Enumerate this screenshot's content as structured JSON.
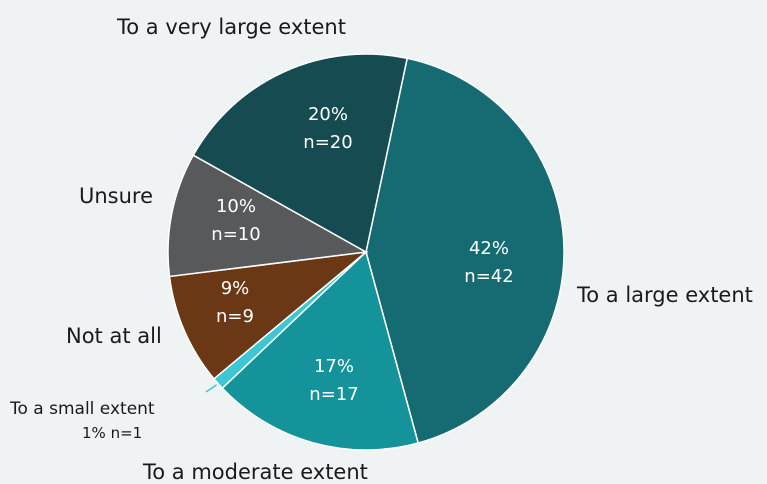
{
  "chart_data": {
    "type": "pie",
    "title": "",
    "slices": [
      {
        "label": "To a large extent",
        "value": 42,
        "percent_text": "42%",
        "n_text": "n=42",
        "color": "#156b71"
      },
      {
        "label": "To a moderate extent",
        "value": 17,
        "percent_text": "17%",
        "n_text": "n=17",
        "color": "#14939a"
      },
      {
        "label": "To a small extent",
        "value": 1,
        "percent_text": "1%",
        "n_text": "n=1",
        "color": "#3dc6d4"
      },
      {
        "label": "Not at all",
        "value": 9,
        "percent_text": "9%",
        "n_text": "n=9",
        "color": "#6a3815"
      },
      {
        "label": "Unsure",
        "value": 10,
        "percent_text": "10%",
        "n_text": "n=10",
        "color": "#58595b"
      },
      {
        "label": "To a very large extent",
        "value": 20,
        "percent_text": "20%",
        "n_text": "n=20",
        "color": "#154b51"
      }
    ],
    "legend": "none"
  }
}
